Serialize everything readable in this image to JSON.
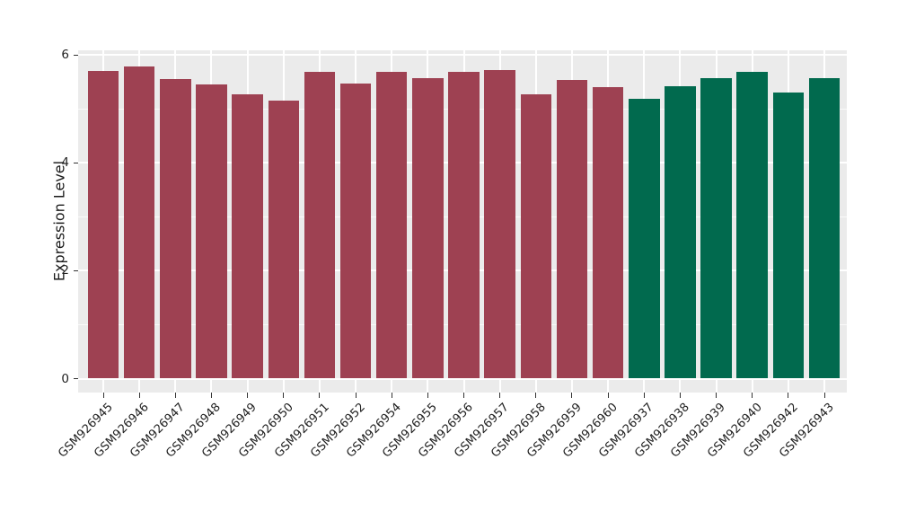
{
  "chart_data": {
    "type": "bar",
    "title": "",
    "xlabel": "",
    "ylabel": "Expression Level",
    "ylim": [
      0,
      6.1
    ],
    "yticks": [
      0,
      2,
      4,
      6
    ],
    "yticks_minor": [
      1,
      3,
      5
    ],
    "grid": "on",
    "legend": "none",
    "panel_background": "#ebebeb",
    "grid_color": "#ffffff",
    "categories": [
      "GSM926945",
      "GSM926946",
      "GSM926947",
      "GSM926948",
      "GSM926949",
      "GSM926950",
      "GSM926951",
      "GSM926952",
      "GSM926954",
      "GSM926955",
      "GSM926956",
      "GSM926957",
      "GSM926958",
      "GSM926959",
      "GSM926960",
      "GSM926937",
      "GSM926938",
      "GSM926939",
      "GSM926940",
      "GSM926942",
      "GSM926943"
    ],
    "values": [
      5.7,
      5.79,
      5.55,
      5.45,
      5.27,
      5.15,
      5.69,
      5.46,
      5.69,
      5.57,
      5.68,
      5.72,
      5.27,
      5.53,
      5.4,
      5.19,
      5.41,
      5.56,
      5.69,
      5.3,
      5.56
    ],
    "groups": [
      "maroon",
      "maroon",
      "maroon",
      "maroon",
      "maroon",
      "maroon",
      "maroon",
      "maroon",
      "maroon",
      "maroon",
      "maroon",
      "maroon",
      "maroon",
      "maroon",
      "maroon",
      "green",
      "green",
      "green",
      "green",
      "green",
      "green"
    ],
    "group_colors": {
      "maroon": "#9E4152",
      "green": "#016A4E"
    }
  }
}
